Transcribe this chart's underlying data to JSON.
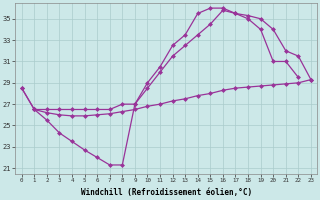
{
  "xlabel": "Windchill (Refroidissement éolien,°C)",
  "background_color": "#cce8e8",
  "grid_color": "#aacccc",
  "line_color": "#993399",
  "ylim": [
    20.5,
    36.5
  ],
  "xlim": [
    -0.5,
    23.5
  ],
  "yticks": [
    21,
    23,
    25,
    27,
    29,
    31,
    33,
    35
  ],
  "xticks": [
    0,
    1,
    2,
    3,
    4,
    5,
    6,
    7,
    8,
    9,
    10,
    11,
    12,
    13,
    14,
    15,
    16,
    17,
    18,
    19,
    20,
    21,
    22,
    23
  ],
  "line1_x": [
    0,
    1,
    2,
    3,
    4,
    5,
    6,
    7,
    8,
    9,
    10,
    11,
    12,
    13,
    14,
    15,
    16,
    17,
    18,
    19,
    20,
    21,
    22,
    23
  ],
  "line1_y": [
    28.5,
    26.5,
    26.2,
    26.0,
    25.9,
    25.9,
    26.0,
    26.1,
    26.3,
    26.5,
    26.8,
    27.0,
    27.3,
    27.5,
    27.8,
    28.0,
    28.3,
    28.5,
    28.6,
    28.7,
    28.8,
    28.9,
    29.0,
    29.3
  ],
  "line2_x": [
    0,
    1,
    2,
    3,
    4,
    5,
    6,
    7,
    8,
    9,
    10,
    11,
    12,
    13,
    14,
    15,
    16,
    17,
    18,
    19,
    20,
    21,
    22,
    23
  ],
  "line2_y": [
    28.5,
    26.5,
    25.5,
    24.3,
    23.5,
    22.7,
    22.0,
    21.3,
    21.3,
    27.0,
    29.0,
    30.5,
    32.5,
    33.5,
    35.5,
    36.0,
    36.0,
    35.5,
    35.0,
    34.0,
    31.0,
    31.0,
    29.5,
    null
  ],
  "line3_x": [
    1,
    2,
    3,
    4,
    5,
    6,
    7,
    8,
    9,
    10,
    11,
    12,
    13,
    14,
    15,
    16,
    17,
    18,
    19,
    20,
    21,
    22,
    23
  ],
  "line3_y": [
    26.5,
    26.5,
    26.5,
    26.5,
    26.5,
    26.5,
    26.5,
    27.0,
    27.0,
    28.5,
    30.0,
    31.5,
    32.5,
    33.5,
    34.5,
    35.8,
    35.5,
    35.3,
    35.0,
    34.0,
    32.0,
    31.5,
    29.3
  ]
}
